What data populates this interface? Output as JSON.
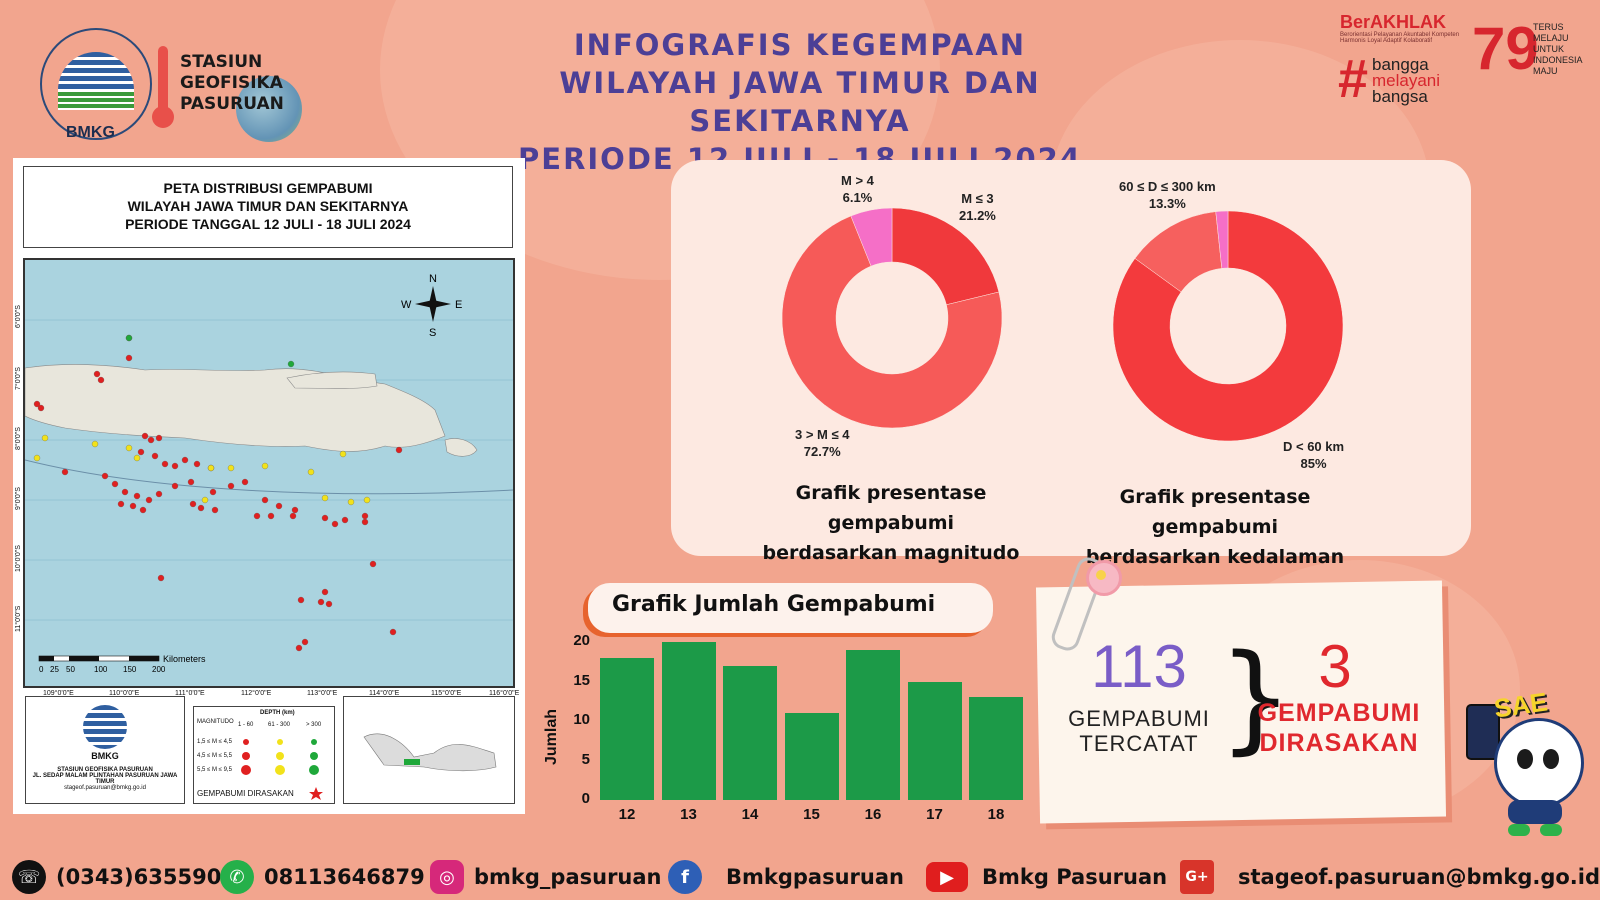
{
  "header": {
    "title_lines": [
      "INFOGRAFIS KEGEMPAAN",
      "WILAYAH JAWA TIMUR DAN SEKITARNYA",
      "PERIODE 12 JULI - 18 JULI 2024"
    ],
    "logo_text": "BMKG",
    "station_lines": [
      "STASIUN",
      "GEOFISIKA",
      "PASURUAN"
    ],
    "berakhlak": "BerAKHLAK",
    "berakhlak_sub": "Berorientasi Pelayanan Akuntabel Kompeten Harmonis Loyal Adaptif Kolaboratif",
    "bangga_lines": [
      "bangga",
      "melayani",
      "bangsa"
    ],
    "anniv_lines": [
      "TERUS",
      "MELAJU",
      "UNTUK",
      "INDONESIA",
      "MAJU"
    ]
  },
  "map": {
    "title_lines": [
      "PETA DISTRIBUSI GEMPABUMI",
      "WILAYAH JAWA TIMUR DAN SEKITARNYA",
      "PERIODE TANGGAL 12 JULI - 18 JULI 2024"
    ],
    "compass": {
      "n": "N",
      "s": "S",
      "e": "E",
      "w": "W"
    },
    "scale_label": "Kilometers",
    "scale_ticks": [
      "0",
      "25",
      "50",
      "100",
      "150",
      "200"
    ],
    "lon_labels": [
      "109°0'0\"E",
      "110°0'0\"E",
      "111°0'0\"E",
      "112°0'0\"E",
      "113°0'0\"E",
      "114°0'0\"E",
      "115°0'0\"E",
      "116°0'0\"E"
    ],
    "lat_labels": [
      "6°0'0\"S",
      "7°0'0\"S",
      "8°0'0\"S",
      "9°0'0\"S",
      "10°0'0\"S",
      "11°0'0\"S"
    ],
    "footer_logo": "BMKG",
    "footer_lines": [
      "STASIUN GEOFISIKA PASURUAN",
      "JL. SEDAP MALAM PLINTAHAN PASURUAN JAWA TIMUR",
      "stageof.pasuruan@bmkg.go.id"
    ],
    "legend": {
      "depth_header": "DEPTH (km)",
      "mag_header": "MAGNITUDO",
      "depth_cols": [
        "1 - 60",
        "61 - 300",
        "> 300"
      ],
      "mag_rows": [
        "1,5 ≤ M ≤ 4,5",
        "4,5 ≤ M ≤ 5,5",
        "5,5 ≤ M ≤ 9,5"
      ],
      "felt": "GEMPABUMI DIRASAKAN",
      "colors": {
        "shallow": "#e02020",
        "intermediate": "#f2e21a",
        "deep": "#1fa83a"
      }
    }
  },
  "chart_data": [
    {
      "type": "pie",
      "variant": "donut",
      "caption_lines": [
        "Grafik presentase gempabumi",
        "berdasarkan magnitudo"
      ],
      "slices": [
        {
          "label": "M ≤ 3",
          "value": 21.2,
          "display": "21.2%",
          "color": "#f0393c"
        },
        {
          "label": "3 > M ≤ 4",
          "value": 72.7,
          "display": "72.7%",
          "color": "#f65a58"
        },
        {
          "label": "M > 4",
          "value": 6.1,
          "display": "6.1%",
          "color": "#f56fc7"
        }
      ]
    },
    {
      "type": "pie",
      "variant": "donut",
      "caption_lines": [
        "Grafik presentase gempabumi",
        "berdasarkan kedalaman"
      ],
      "slices": [
        {
          "label": "D < 60 km",
          "value": 85,
          "display": "85%",
          "color": "#f33a3d"
        },
        {
          "label": "60 ≤ D ≤ 300 km",
          "value": 13.3,
          "display": "13.3%",
          "color": "#f6605e"
        },
        {
          "label": "",
          "value": 1.7,
          "display": "",
          "color": "#f56fc7"
        }
      ]
    },
    {
      "type": "bar",
      "title": "Grafik Jumlah Gempabumi",
      "ylabel": "Jumlah",
      "categories": [
        "12",
        "13",
        "14",
        "15",
        "16",
        "17",
        "18"
      ],
      "values": [
        18,
        20,
        17,
        11,
        19,
        15,
        13
      ],
      "ylim": [
        0,
        20
      ],
      "yticks": [
        "0",
        "5",
        "10",
        "15",
        "20"
      ],
      "color": "#1c9a48"
    }
  ],
  "stats": {
    "total": "113",
    "total_label_lines": [
      "GEMPABUMI",
      "TERCATAT"
    ],
    "felt": "3",
    "felt_label_lines": [
      "GEMPABUMI",
      "DIRASAKAN"
    ],
    "total_color": "#7a5dc7",
    "felt_color": "#e0282e"
  },
  "mascot": {
    "text": "SAE"
  },
  "footer": {
    "phone": "(0343)635590",
    "whatsapp": "08113646879",
    "instagram": "bmkg_pasuruan",
    "facebook": "Bmkgpasuruan",
    "youtube": "Bmkg Pasuruan",
    "email": "stageof.pasuruan@bmkg.go.id",
    "icons": {
      "phone": "phone-icon",
      "whatsapp": "whatsapp-icon",
      "instagram": "instagram-icon",
      "facebook": "facebook-icon",
      "youtube": "youtube-icon",
      "google": "google-plus-icon"
    }
  }
}
